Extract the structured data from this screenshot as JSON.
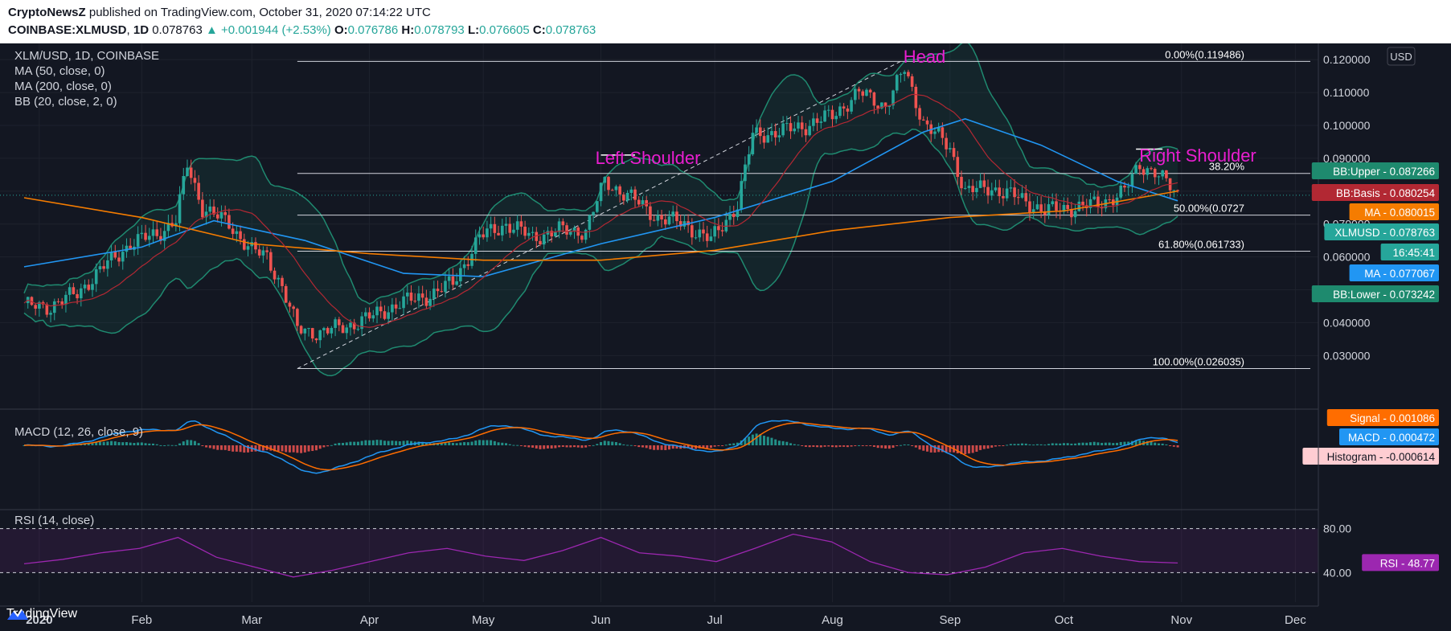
{
  "header": {
    "author": "CryptoNewsZ",
    "published_text": "published on TradingView.com, October 31, 2020 07:14:22 UTC",
    "symbol": "COINBASE:XLMUSD",
    "interval": "1D",
    "last": "0.078763",
    "change": "+0.001944 (+2.53%)",
    "o_label": "O:",
    "o_value": "0.076786",
    "h_label": "H:",
    "h_value": "0.078793",
    "l_label": "L:",
    "l_value": "0.076605",
    "c_label": "C:",
    "c_value": "0.078763"
  },
  "legend": {
    "title": "XLM/USD, 1D, COINBASE",
    "ma50": "MA (50, close, 0)",
    "ma200": "MA (200, close, 0)",
    "bb": "BB (20, close, 2, 0)"
  },
  "annotations": {
    "head": "Head",
    "left_shoulder": "Left Shoulder",
    "right_shoulder": "Right Shoulder"
  },
  "currency_button": "USD",
  "brand": "TradingView",
  "colors": {
    "background": "#131722",
    "up": "#26a69a",
    "down": "#ef5350",
    "ma50": "#2196f3",
    "ma200": "#f57c00",
    "bb_band": "#1f8a70",
    "annotation": "#e91ed0",
    "rsi": "#9c27b0",
    "signal": "#ff6d00",
    "macd": "#2196f3"
  },
  "badges": [
    {
      "label": "BB:Upper - 0.087266",
      "color": "#1e8a6e"
    },
    {
      "label": "BB:Basis - 0.080254",
      "color": "#b22833"
    },
    {
      "label": "MA - 0.080015",
      "color": "#f57c00"
    },
    {
      "label": "XLMUSD - 0.078763",
      "color": "#26a69a"
    },
    {
      "label": "16:45:41",
      "color": "#26a69a"
    },
    {
      "label": "MA - 0.077067",
      "color": "#2196f3"
    },
    {
      "label": "BB:Lower - 0.073242",
      "color": "#1e8a6e"
    }
  ],
  "macd_legend": "MACD (12, 26, close, 9)",
  "macd_badges": [
    {
      "label": "Signal - 0.001086",
      "color": "#ff6d00",
      "text": "#ffffff"
    },
    {
      "label": "MACD - 0.000472",
      "color": "#2196f3",
      "text": "#ffffff"
    },
    {
      "label": "Histogram - -0.000614",
      "color": "#ffcdd2",
      "text": "#131722"
    }
  ],
  "rsi_legend": "RSI (14, close)",
  "rsi_badge": "RSI - 48.77",
  "rsi_ticks": [
    "80.00",
    "40.00"
  ],
  "chart_data": [
    {
      "type": "candlestick",
      "title": "XLM/USD, 1D, COINBASE",
      "x_tick_labels": [
        "2020",
        "Feb",
        "Mar",
        "Apr",
        "May",
        "Jun",
        "Jul",
        "Aug",
        "Sep",
        "Oct",
        "Nov",
        "Dec"
      ],
      "y_tick_labels": [
        "0.120000",
        "0.110000",
        "0.100000",
        "0.090000",
        "0.080000",
        "0.070000",
        "0.060000",
        "0.050000",
        "0.040000",
        "0.030000"
      ],
      "ylim": [
        0.0247,
        0.1225
      ],
      "fib_levels": [
        {
          "label": "0.00%(0.119486)",
          "value": 0.119486
        },
        {
          "label": "38.20%",
          "value": 0.0854
        },
        {
          "label": "50.00%(0.0727",
          "value": 0.0727
        },
        {
          "label": "61.80%(0.061733)",
          "value": 0.061733
        },
        {
          "label": "100.00%(0.026035)",
          "value": 0.026035
        }
      ],
      "close_series": [
        [
          "2020-01-01",
          0.045
        ],
        [
          "2020-01-08",
          0.045
        ],
        [
          "2020-01-15",
          0.049
        ],
        [
          "2020-01-22",
          0.057
        ],
        [
          "2020-01-29",
          0.064
        ],
        [
          "2020-02-05",
          0.067
        ],
        [
          "2020-02-10",
          0.071
        ],
        [
          "2020-02-13",
          0.088
        ],
        [
          "2020-02-17",
          0.075
        ],
        [
          "2020-02-24",
          0.07
        ],
        [
          "2020-03-01",
          0.062
        ],
        [
          "2020-03-05",
          0.06
        ],
        [
          "2020-03-09",
          0.051
        ],
        [
          "2020-03-13",
          0.038
        ],
        [
          "2020-03-19",
          0.037
        ],
        [
          "2020-03-26",
          0.039
        ],
        [
          "2020-04-02",
          0.042
        ],
        [
          "2020-04-09",
          0.046
        ],
        [
          "2020-04-16",
          0.048
        ],
        [
          "2020-04-23",
          0.052
        ],
        [
          "2020-04-30",
          0.066
        ],
        [
          "2020-05-07",
          0.07
        ],
        [
          "2020-05-14",
          0.066
        ],
        [
          "2020-05-21",
          0.068
        ],
        [
          "2020-05-28",
          0.068
        ],
        [
          "2020-06-02",
          0.083
        ],
        [
          "2020-06-09",
          0.078
        ],
        [
          "2020-06-16",
          0.072
        ],
        [
          "2020-06-23",
          0.07
        ],
        [
          "2020-06-30",
          0.065
        ],
        [
          "2020-07-07",
          0.076
        ],
        [
          "2020-07-11",
          0.097
        ],
        [
          "2020-07-18",
          0.098
        ],
        [
          "2020-07-25",
          0.1
        ],
        [
          "2020-08-01",
          0.103
        ],
        [
          "2020-08-08",
          0.11
        ],
        [
          "2020-08-15",
          0.106
        ],
        [
          "2020-08-20",
          0.117
        ],
        [
          "2020-08-25",
          0.101
        ],
        [
          "2020-09-01",
          0.093
        ],
        [
          "2020-09-05",
          0.08
        ],
        [
          "2020-09-12",
          0.081
        ],
        [
          "2020-09-19",
          0.078
        ],
        [
          "2020-09-26",
          0.074
        ],
        [
          "2020-10-03",
          0.075
        ],
        [
          "2020-10-10",
          0.076
        ],
        [
          "2020-10-17",
          0.08
        ],
        [
          "2020-10-21",
          0.088
        ],
        [
          "2020-10-25",
          0.086
        ],
        [
          "2020-10-31",
          0.078763
        ]
      ],
      "ma50": [
        [
          "2020-01-01",
          0.057
        ],
        [
          "2020-02-01",
          0.063
        ],
        [
          "2020-02-20",
          0.071
        ],
        [
          "2020-03-15",
          0.065
        ],
        [
          "2020-04-10",
          0.055
        ],
        [
          "2020-05-01",
          0.054
        ],
        [
          "2020-06-01",
          0.064
        ],
        [
          "2020-07-01",
          0.072
        ],
        [
          "2020-08-01",
          0.083
        ],
        [
          "2020-08-25",
          0.098
        ],
        [
          "2020-09-05",
          0.102
        ],
        [
          "2020-09-25",
          0.094
        ],
        [
          "2020-10-15",
          0.083
        ],
        [
          "2020-10-31",
          0.077067
        ]
      ],
      "ma200": [
        [
          "2020-01-01",
          0.078
        ],
        [
          "2020-02-01",
          0.072
        ],
        [
          "2020-03-01",
          0.064
        ],
        [
          "2020-04-01",
          0.061
        ],
        [
          "2020-05-01",
          0.059
        ],
        [
          "2020-06-01",
          0.059
        ],
        [
          "2020-07-01",
          0.062
        ],
        [
          "2020-08-01",
          0.068
        ],
        [
          "2020-09-01",
          0.072
        ],
        [
          "2020-10-01",
          0.074
        ],
        [
          "2020-10-31",
          0.080015
        ]
      ]
    },
    {
      "type": "line",
      "title": "MACD (12, 26, close, 9)",
      "series": [
        {
          "name": "MACD",
          "values": [
            0.000472
          ]
        },
        {
          "name": "Signal",
          "values": [
            0.001086
          ]
        },
        {
          "name": "Histogram",
          "values": [
            -0.000614
          ]
        }
      ]
    },
    {
      "type": "line",
      "title": "RSI (14, close)",
      "ylim": [
        30,
        90
      ],
      "series": [
        {
          "name": "RSI",
          "values": [
            48,
            52,
            58,
            62,
            72,
            54,
            45,
            36,
            42,
            50,
            58,
            62,
            55,
            51,
            60,
            72,
            58,
            55,
            50,
            62,
            75,
            68,
            50,
            40,
            38,
            45,
            58,
            62,
            55,
            50,
            48.77
          ]
        }
      ]
    }
  ]
}
